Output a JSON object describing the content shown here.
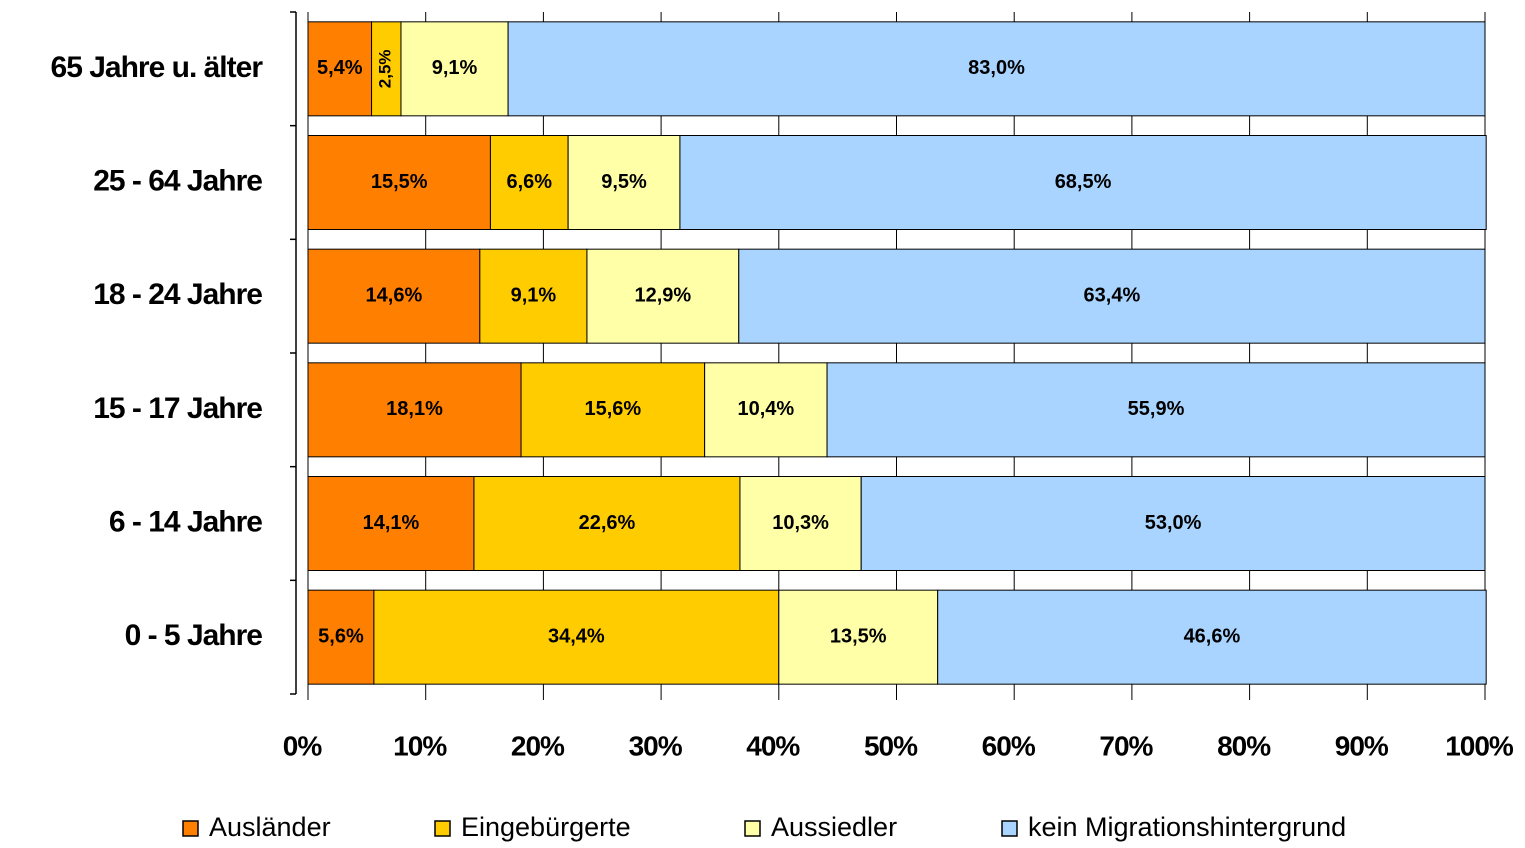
{
  "chart_data": {
    "type": "stacked-barh",
    "categories": [
      "65 Jahre u. älter",
      "25 - 64 Jahre",
      "18 - 24 Jahre",
      "15 - 17 Jahre",
      "6 - 14 Jahre",
      "0 - 5 Jahre"
    ],
    "series": [
      {
        "name": "Ausländer",
        "color": "#ff8000",
        "values": [
          5.4,
          15.5,
          14.6,
          18.1,
          14.1,
          5.6
        ],
        "value_labels": [
          "5,4%",
          "15,5%",
          "14,6%",
          "18,1%",
          "14,1%",
          "5,6%"
        ]
      },
      {
        "name": "Eingebürgerte",
        "color": "#ffcc00",
        "values": [
          2.5,
          6.6,
          9.1,
          15.6,
          22.6,
          34.4
        ],
        "value_labels": [
          "2,5%",
          "6,6%",
          "9,1%",
          "15,6%",
          "22,6%",
          "34,4%"
        ]
      },
      {
        "name": "Aussiedler",
        "color": "#ffffa8",
        "values": [
          9.1,
          9.5,
          12.9,
          10.4,
          10.3,
          13.5
        ],
        "value_labels": [
          "9,1%",
          "9,5%",
          "12,9%",
          "10,4%",
          "10,3%",
          "13,5%"
        ]
      },
      {
        "name": "kein Migrationshintergrund",
        "color": "#a8d4ff",
        "values": [
          83.0,
          68.5,
          63.4,
          55.9,
          53.0,
          46.6
        ],
        "value_labels": [
          "83,0%",
          "68,5%",
          "63,4%",
          "55,9%",
          "53,0%",
          "46,6%"
        ]
      }
    ],
    "xlim": [
      0,
      100
    ],
    "xticks": [
      {
        "value": 0,
        "label": "0%"
      },
      {
        "value": 10,
        "label": "10%"
      },
      {
        "value": 20,
        "label": "20%"
      },
      {
        "value": 30,
        "label": "30%"
      },
      {
        "value": 40,
        "label": "40%"
      },
      {
        "value": 50,
        "label": "50%"
      },
      {
        "value": 60,
        "label": "60%"
      },
      {
        "value": 70,
        "label": "70%"
      },
      {
        "value": 80,
        "label": "80%"
      },
      {
        "value": 90,
        "label": "90%"
      },
      {
        "value": 100,
        "label": "100%"
      }
    ],
    "grid": true,
    "legend": "bottom"
  }
}
